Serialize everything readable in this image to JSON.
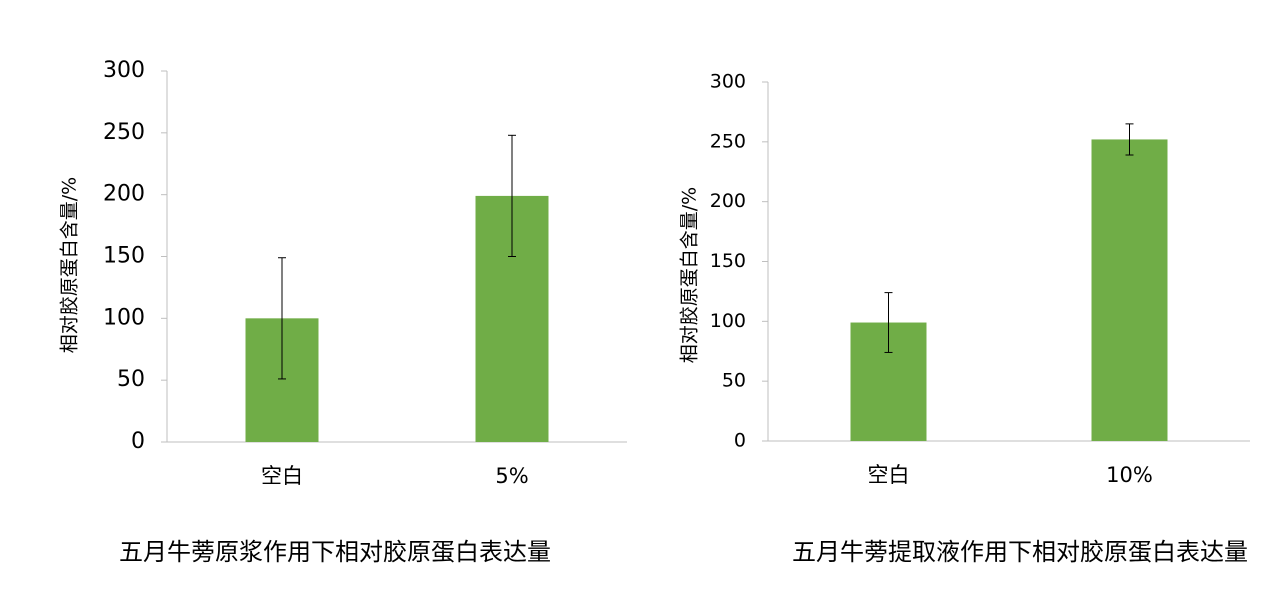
{
  "chart_data": [
    {
      "type": "bar",
      "title": "五月牛蒡原浆作用下相对胶原蛋白表达量",
      "ylabel": "相对胶原蛋白含量/%",
      "categories": [
        "空白",
        "5%"
      ],
      "values": [
        100,
        199
      ],
      "errors": [
        49,
        49
      ],
      "color": "#70ad47",
      "ylim": [
        0,
        300
      ],
      "yticks": [
        0,
        50,
        100,
        150,
        200,
        250,
        300
      ],
      "grid": false
    },
    {
      "type": "bar",
      "title": "五月牛蒡提取液作用下相对胶原蛋白表达量",
      "ylabel": "相对胶原蛋白含量/%",
      "categories": [
        "空白",
        "10%"
      ],
      "values": [
        99,
        252
      ],
      "errors": [
        25,
        13
      ],
      "color": "#70ad47",
      "ylim": [
        0,
        300
      ],
      "yticks": [
        0,
        50,
        100,
        150,
        200,
        250,
        300
      ],
      "grid": false
    }
  ]
}
